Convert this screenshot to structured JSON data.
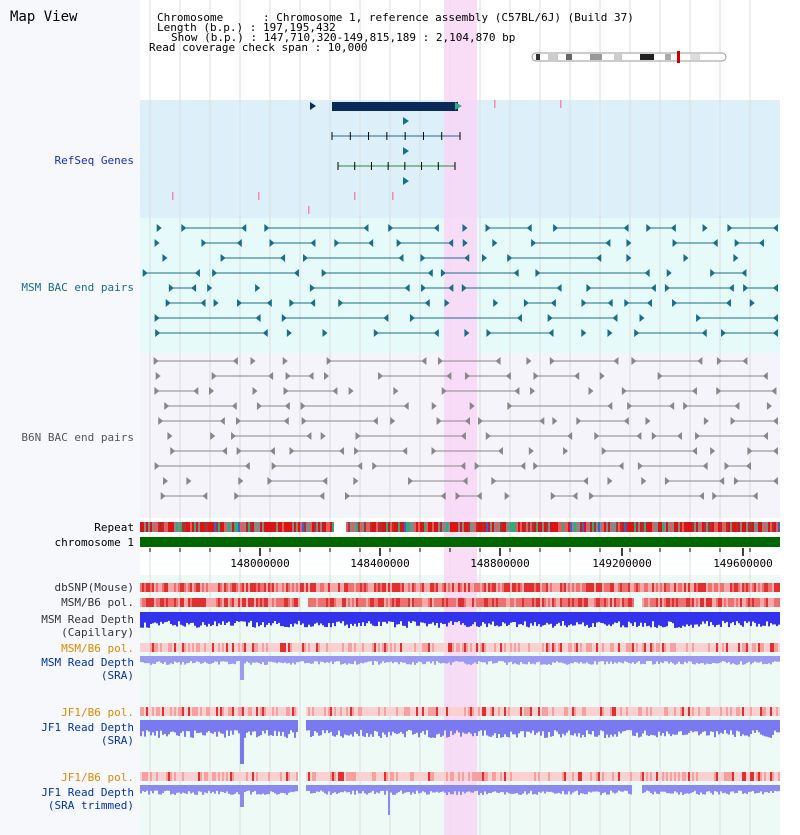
{
  "header": {
    "title": "Map View",
    "chromosome": "Chromosome      : Chromosome 1, reference assembly (C57BL/6J) (Build 37)",
    "length": "Length (b.p.) : 197,195,432",
    "show": "Show (b.p.) : 147,710,320-149,815,189 : 2,104,870 bp",
    "coverage": "Read coverage check span : 10,000"
  },
  "tracks": {
    "refseq": "RefSeq Genes",
    "msm_bac": "MSM BAC end pairs",
    "b6n_bac": "B6N BAC end pairs",
    "repeat": "Repeat",
    "chromosome": "chromosome 1",
    "dbsnp": "dbSNP(Mouse)",
    "msm_b6_pol_cap": "MSM/B6 pol.",
    "msm_depth_cap_1": "MSM Read Depth",
    "msm_depth_cap_2": "(Capillary)",
    "msm_b6_pol_sra": "MSM/B6 pol.",
    "msm_depth_sra_1": "MSM Read Depth",
    "msm_depth_sra_2": "(SRA)",
    "jf1_b6_pol": "JF1/B6 pol.",
    "jf1_depth_sra_1": "JF1 Read Depth",
    "jf1_depth_sra_2": "(SRA)",
    "jf1_b6_pol_trim": "JF1/B6 pol.",
    "jf1_depth_trim_1": "JF1 Read Depth",
    "jf1_depth_trim_2": "(SRA trimmed)"
  },
  "ruler": {
    "ticks": [
      "148000000",
      "148400000",
      "148800000",
      "149200000",
      "149600000"
    ]
  },
  "colors": {
    "refseq_bg": "#ddf0fa",
    "msm_bg": "#e6fafa",
    "b6n_bg": "#f4f4fa",
    "highlight": "#f8d6f4",
    "gene_dark": "#0a2a5a",
    "msm_feature": "#1a6e8c",
    "b6n_feature": "#888888",
    "chromosome": "#006600",
    "refseq_label": "#1a2fbf",
    "msm_label": "#1a6e8c",
    "orange_label": "#e08a00",
    "blue_label": "#0033aa"
  }
}
